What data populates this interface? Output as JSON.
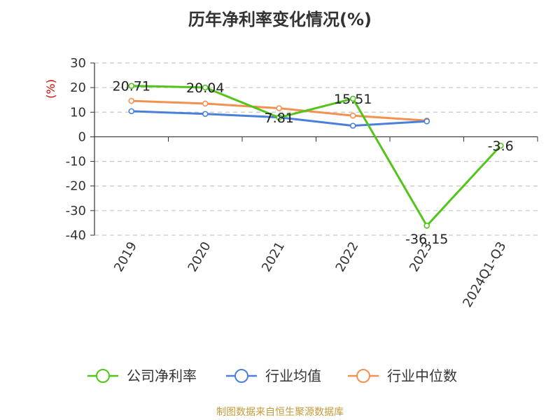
{
  "source": "制图数据来自恒生聚源数据库",
  "chart_data": {
    "type": "line",
    "title": "历年净利率变化情况(%)",
    "ylabel": "(%)",
    "xlabel": "",
    "categories": [
      "2019",
      "2020",
      "2021",
      "2022",
      "2023",
      "2024Q1-Q3"
    ],
    "ylim": [
      -40,
      30
    ],
    "yticks": [
      30,
      20,
      10,
      0,
      -10,
      -20,
      -30,
      -40
    ],
    "grid": true,
    "legend": "bottom",
    "series": [
      {
        "name": "公司净利率",
        "color": "#52c41a",
        "values": [
          20.71,
          20.04,
          7.81,
          15.51,
          -36.15,
          -3.6
        ],
        "labels": [
          "20.71",
          "20.04",
          "7.81",
          "15.51",
          "-36.15",
          "-3.6"
        ]
      },
      {
        "name": "行业均值",
        "color": "#4a7fdc",
        "values": [
          10.4,
          9.3,
          7.9,
          4.5,
          6.3,
          null
        ]
      },
      {
        "name": "行业中位数",
        "color": "#f39150",
        "values": [
          14.6,
          13.5,
          11.6,
          8.6,
          6.6,
          null
        ]
      }
    ]
  }
}
